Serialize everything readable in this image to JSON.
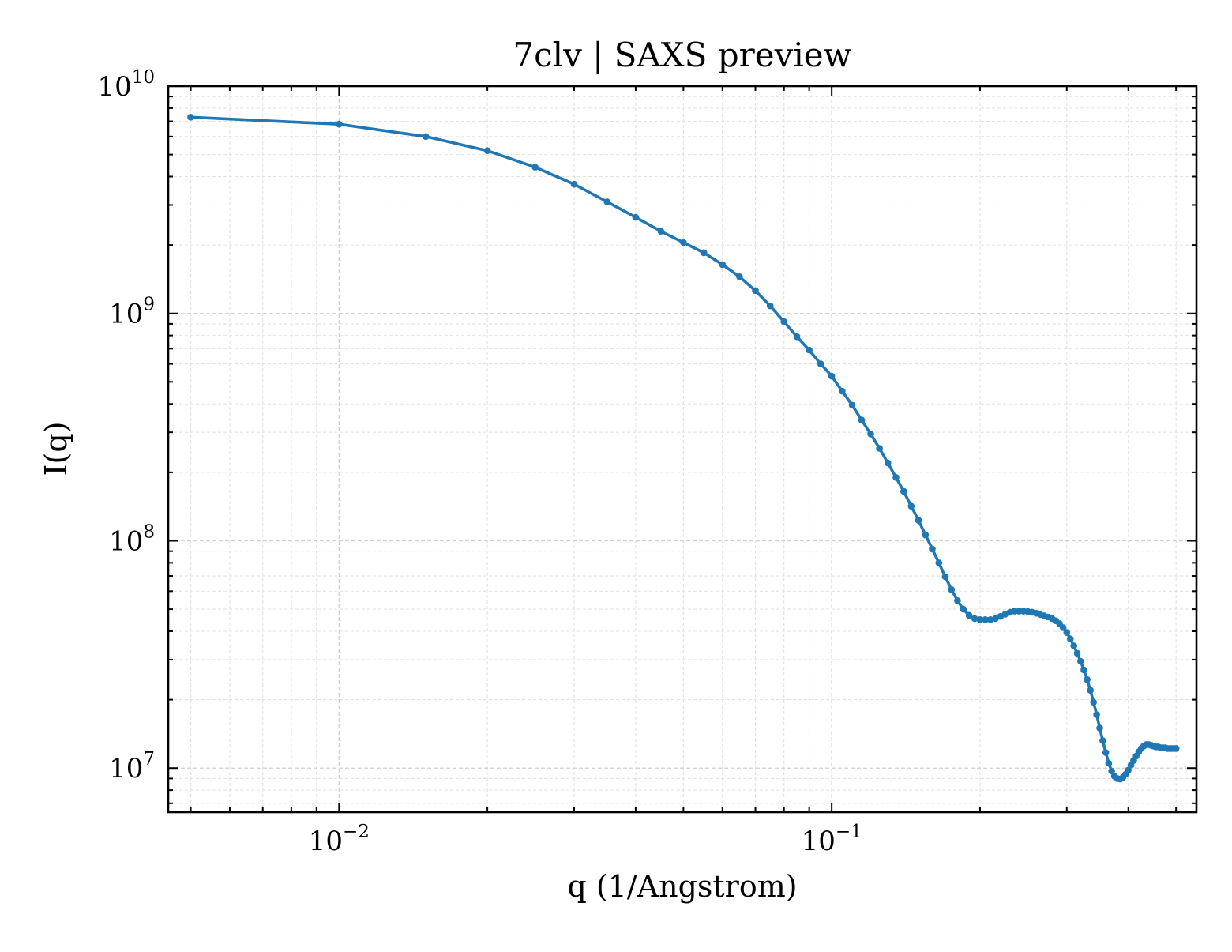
{
  "chart_data": {
    "type": "line",
    "title": "7clv | SAXS preview",
    "xlabel": "q (1/Angstrom)",
    "ylabel": "I(q)",
    "xscale": "log",
    "yscale": "log",
    "xlim": [
      0.0045,
      0.55
    ],
    "ylim": [
      6400000.0,
      10000000000.0
    ],
    "grid": true,
    "color": "#1f77b4",
    "xticks": [
      {
        "base": "10",
        "exp": "−2",
        "value": 0.01
      },
      {
        "base": "10",
        "exp": "−1",
        "value": 0.1
      }
    ],
    "yticks": [
      {
        "base": "10",
        "exp": "7",
        "value": 10000000.0
      },
      {
        "base": "10",
        "exp": "8",
        "value": 100000000.0
      },
      {
        "base": "10",
        "exp": "9",
        "value": 1000000000.0
      },
      {
        "base": "10",
        "exp": "10",
        "value": 10000000000.0
      }
    ],
    "series": [
      {
        "x": [
          0.005,
          0.01,
          0.015,
          0.02,
          0.025,
          0.03,
          0.035,
          0.04,
          0.045,
          0.05,
          0.055,
          0.06,
          0.065,
          0.07,
          0.075,
          0.08,
          0.085,
          0.09,
          0.095,
          0.1,
          0.105,
          0.11,
          0.115,
          0.12,
          0.125,
          0.13,
          0.135,
          0.14,
          0.145,
          0.15,
          0.155,
          0.16,
          0.165,
          0.17,
          0.175,
          0.18,
          0.185,
          0.19,
          0.195,
          0.2,
          0.205,
          0.21,
          0.215,
          0.22,
          0.225,
          0.23,
          0.235,
          0.24,
          0.245,
          0.25,
          0.255,
          0.26,
          0.265,
          0.27,
          0.275,
          0.28,
          0.285,
          0.29,
          0.295,
          0.3,
          0.305,
          0.31,
          0.315,
          0.32,
          0.325,
          0.33,
          0.335,
          0.34,
          0.345,
          0.35,
          0.355,
          0.36,
          0.365,
          0.37,
          0.375,
          0.38,
          0.385,
          0.39,
          0.395,
          0.4,
          0.405,
          0.41,
          0.415,
          0.42,
          0.425,
          0.43,
          0.435,
          0.44,
          0.445,
          0.45,
          0.455,
          0.46,
          0.465,
          0.47,
          0.475,
          0.48,
          0.485,
          0.49,
          0.495,
          0.5
        ],
        "y": [
          7300000000.0,
          6800000000.0,
          6000000000.0,
          5200000000.0,
          4400000000.0,
          3700000000.0,
          3100000000.0,
          2650000000.0,
          2300000000.0,
          2050000000.0,
          1850000000.0,
          1640000000.0,
          1450000000.0,
          1260000000.0,
          1080000000.0,
          920000000.0,
          790000000.0,
          690000000.0,
          600000000.0,
          530000000.0,
          455000000.0,
          395000000.0,
          340000000.0,
          295000000.0,
          255000000.0,
          220000000.0,
          190000000.0,
          165000000.0,
          142000000.0,
          123000000.0,
          106000000.0,
          92000000.0,
          80000000.0,
          69500000.0,
          61000000.0,
          54500000.0,
          50000000.0,
          47000000.0,
          45500000.0,
          45000000.0,
          45000000.0,
          45000000.0,
          45500000.0,
          46500000.0,
          47500000.0,
          48500000.0,
          49000000.0,
          49000000.0,
          49000000.0,
          48800000.0,
          48500000.0,
          48000000.0,
          47300000.0,
          46800000.0,
          46200000.0,
          45500000.0,
          44500000.0,
          43200000.0,
          41500000.0,
          39500000.0,
          37000000.0,
          34500000.0,
          32000000.0,
          29500000.0,
          27000000.0,
          24500000.0,
          22000000.0,
          19500000.0,
          17200000.0,
          15000000.0,
          13200000.0,
          11700000.0,
          10500000.0,
          9700000.0,
          9200000.0,
          9000000.0,
          8950000.0,
          9100000.0,
          9400000.0,
          9800000.0,
          10300000.0,
          10800000.0,
          11300000.0,
          11800000.0,
          12200000.0,
          12500000.0,
          12700000.0,
          12700000.0,
          12600000.0,
          12500000.0,
          12400000.0,
          12400000.0,
          12300000.0,
          12300000.0,
          12300000.0,
          12200000.0,
          12200000.0,
          12200000.0,
          12200000.0,
          12200000.0
        ]
      }
    ]
  }
}
